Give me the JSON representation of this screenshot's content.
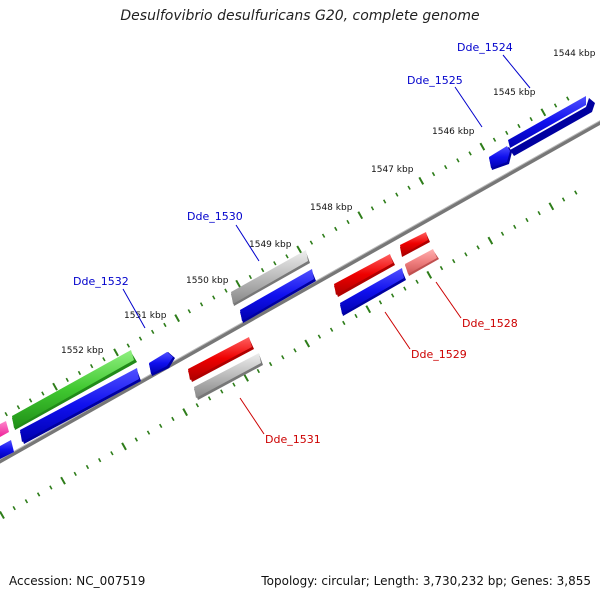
{
  "title": "Desulfovibrio desulfuricans G20, complete genome",
  "footer": {
    "accession": "Accession: NC_007519",
    "stats": "Topology: circular; Length: 3,730,232 bp; Genes: 3,855"
  },
  "colors": {
    "forward_strand_gene": "#0000ee",
    "reverse_strand_gene": "#ee0000",
    "rna_or_other_gene": "#33cc33",
    "pseudo_gene": "#aaaaaa",
    "highlight_gene": "#ff3399",
    "backbone": "#888888",
    "tick": "#2e7d1a"
  },
  "scale": {
    "unit": "kbp",
    "labels": [
      "1544 kbp",
      "1545 kbp",
      "1546 kbp",
      "1547 kbp",
      "1548 kbp",
      "1549 kbp",
      "1550 kbp",
      "1551 kbp",
      "1552 kbp"
    ]
  },
  "gene_labels": [
    {
      "text": "Dde_1524",
      "strand": "forward"
    },
    {
      "text": "Dde_1525",
      "strand": "forward"
    },
    {
      "text": "Dde_1530",
      "strand": "forward"
    },
    {
      "text": "Dde_1532",
      "strand": "forward"
    },
    {
      "text": "Dde_1528",
      "strand": "reverse"
    },
    {
      "text": "Dde_1529",
      "strand": "reverse"
    },
    {
      "text": "Dde_1531",
      "strand": "reverse"
    }
  ]
}
